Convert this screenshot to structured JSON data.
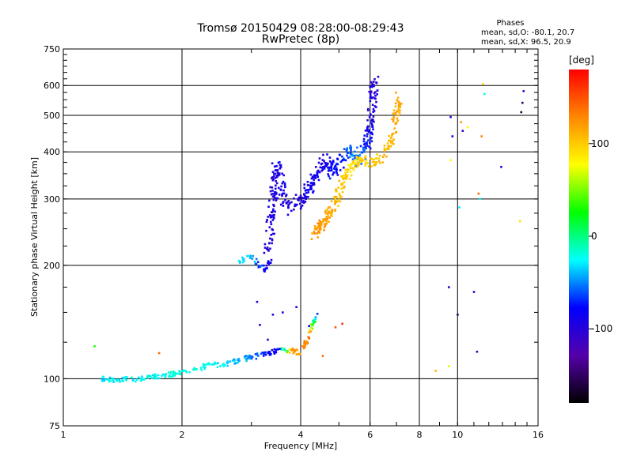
{
  "chart_data": {
    "type": "scatter",
    "title": "Tromsø 20150429 08:28:00-08:29:43",
    "subtitle": "RwPretec (8p)",
    "xlabel": "Frequency [MHz]",
    "ylabel": "Stationary phase Virtual Height [km]",
    "x_scale": "log",
    "y_scale": "log",
    "xlim": [
      1,
      16
    ],
    "ylim": [
      75,
      750
    ],
    "grid": true,
    "x_ticks": [
      1,
      2,
      4,
      6,
      8,
      10,
      16
    ],
    "x_tick_labels": [
      "1",
      "2",
      "4",
      "6",
      "8",
      "10",
      "16"
    ],
    "x_grid": [
      2,
      4,
      6,
      8,
      10
    ],
    "y_ticks": [
      75,
      100,
      200,
      300,
      400,
      500,
      600,
      750
    ],
    "y_tick_labels": [
      "75",
      "100",
      "200",
      "300",
      "400",
      "500",
      "600",
      "750"
    ],
    "y_grid": [
      100,
      200,
      300,
      400,
      500,
      600
    ],
    "stats": {
      "header": "Phases",
      "line_o": "mean, sd,O: -80.1, 20.7",
      "line_x": "mean, sd,X:  96.5, 20.9"
    },
    "colorbar": {
      "label": "[deg]",
      "range": [
        -180,
        180
      ],
      "tick_values": [
        100,
        0,
        -100
      ],
      "tick_labels": [
        "100",
        "0",
        "-100"
      ],
      "colors": [
        "#ff0000",
        "#ff8800",
        "#ffff00",
        "#00ff00",
        "#00ffff",
        "#0000ff",
        "#5500aa",
        "#000000"
      ]
    },
    "series": [
      {
        "trace": [
          [
            1.25,
            100,
            -30
          ],
          [
            1.35,
            99.5,
            -30
          ],
          [
            1.5,
            99.5,
            -25
          ],
          [
            1.7,
            101,
            -25
          ],
          [
            1.9,
            103,
            -20
          ],
          [
            2.1,
            105,
            -20
          ],
          [
            2.3,
            108,
            -20
          ],
          [
            2.6,
            110,
            -30
          ],
          [
            2.9,
            113,
            -45
          ],
          [
            3.2,
            116,
            -70
          ],
          [
            3.5,
            119,
            -90
          ],
          [
            3.8,
            119,
            120
          ],
          [
            4.0,
            117,
            115
          ],
          [
            4.2,
            130,
            140
          ],
          [
            4.4,
            150,
            -90
          ]
        ],
        "spread": 0.02,
        "count": 260
      },
      {
        "trace": [
          [
            2.75,
            205,
            -30
          ],
          [
            3.0,
            210,
            -40
          ],
          [
            3.25,
            195,
            -80
          ],
          [
            3.35,
            205,
            -90
          ]
        ],
        "spread": 0.02,
        "count": 40
      },
      {
        "trace": [
          [
            3.3,
            210,
            -100
          ],
          [
            3.35,
            250,
            -95
          ],
          [
            3.4,
            300,
            -95
          ],
          [
            3.45,
            350,
            -100
          ],
          [
            3.5,
            380,
            -95
          ],
          [
            3.6,
            300,
            -90
          ],
          [
            3.8,
            280,
            -95
          ],
          [
            4.0,
            300,
            -95
          ],
          [
            4.2,
            320,
            -85
          ],
          [
            4.4,
            350,
            -90
          ],
          [
            4.6,
            380,
            -90
          ],
          [
            4.8,
            350,
            -80
          ],
          [
            5.0,
            375,
            -75
          ],
          [
            5.3,
            400,
            -60
          ],
          [
            5.6,
            380,
            -50
          ],
          [
            5.9,
            430,
            -80
          ],
          [
            6.0,
            480,
            -90
          ],
          [
            6.1,
            560,
            -100
          ],
          [
            6.2,
            630,
            -100
          ]
        ],
        "spread": 0.05,
        "count": 420
      },
      {
        "trace": [
          [
            4.3,
            240,
            125
          ],
          [
            4.5,
            255,
            120
          ],
          [
            4.7,
            275,
            115
          ],
          [
            4.9,
            295,
            105
          ],
          [
            5.1,
            330,
            100
          ],
          [
            5.3,
            360,
            90
          ],
          [
            5.6,
            380,
            95
          ],
          [
            6.0,
            375,
            100
          ],
          [
            6.5,
            390,
            105
          ],
          [
            6.8,
            430,
            110
          ],
          [
            7.0,
            500,
            115
          ],
          [
            7.1,
            560,
            115
          ]
        ],
        "spread": 0.04,
        "count": 260
      },
      {
        "points": [
          [
            9.5,
            108,
            70
          ],
          [
            9.6,
            380,
            80
          ],
          [
            9.6,
            495,
            -100
          ],
          [
            9.5,
            175,
            -100
          ],
          [
            9.7,
            440,
            -90
          ],
          [
            10.0,
            148,
            -150
          ],
          [
            10.1,
            285,
            -30
          ],
          [
            10.2,
            480,
            120
          ],
          [
            10.3,
            455,
            -110
          ],
          [
            10.6,
            465,
            80
          ],
          [
            11.0,
            170,
            -100
          ],
          [
            11.2,
            118,
            -110
          ],
          [
            11.3,
            310,
            140
          ],
          [
            11.4,
            300,
            -20
          ],
          [
            11.5,
            440,
            130
          ],
          [
            11.6,
            605,
            100
          ],
          [
            11.7,
            570,
            -20
          ],
          [
            12.9,
            365,
            -90
          ],
          [
            14.4,
            262,
            90
          ],
          [
            14.5,
            510,
            -160
          ],
          [
            14.6,
            540,
            -150
          ],
          [
            14.7,
            580,
            -110
          ],
          [
            8.8,
            105,
            110
          ],
          [
            1.2,
            122,
            30
          ],
          [
            1.75,
            117,
            140
          ],
          [
            4.55,
            115,
            140
          ],
          [
            4.9,
            137,
            150
          ],
          [
            5.1,
            140,
            160
          ],
          [
            3.4,
            148,
            -95
          ],
          [
            3.6,
            150,
            -90
          ],
          [
            3.9,
            155,
            -100
          ],
          [
            4.2,
            138,
            -80
          ],
          [
            3.15,
            139,
            -100
          ],
          [
            3.3,
            127,
            -110
          ],
          [
            3.1,
            160,
            -100
          ]
        ]
      }
    ]
  }
}
